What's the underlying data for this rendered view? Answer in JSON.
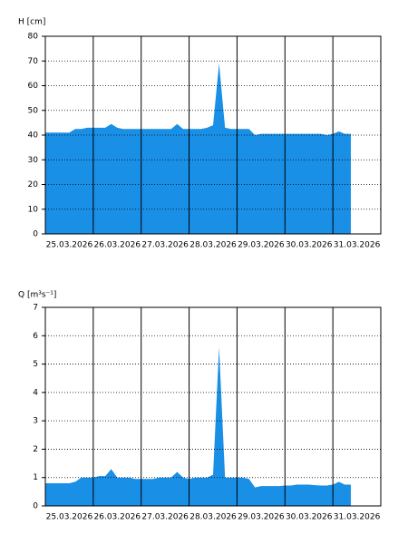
{
  "chart_data": [
    {
      "type": "area",
      "y_label": "H [cm]",
      "categories": [
        null,
        null,
        null,
        null,
        "25.03.2026",
        null,
        null,
        null,
        null,
        null,
        null,
        null,
        "26.03.2026",
        null,
        null,
        null,
        null,
        null,
        null,
        null,
        "27.03.2026",
        null,
        null,
        null,
        null,
        null,
        null,
        null,
        "28.03.2026",
        null,
        null,
        null,
        null,
        null,
        null,
        null,
        "29.03.2026",
        null,
        null,
        null,
        null,
        null,
        null,
        null,
        "30.03.2026",
        null,
        null,
        null,
        null,
        null,
        null,
        null,
        "31.03.2026",
        null,
        null,
        null,
        null
      ],
      "values": [
        41,
        41,
        41,
        41,
        41,
        42.5,
        42.5,
        43,
        43,
        43,
        43,
        44.5,
        43,
        42.5,
        42.5,
        42.5,
        42.5,
        42.5,
        42.5,
        42.5,
        42.5,
        42.5,
        44.5,
        42.5,
        42.5,
        42.5,
        42.5,
        43,
        44,
        69,
        43,
        42.5,
        42.5,
        42.5,
        42.5,
        40,
        40.5,
        40.5,
        40.5,
        40.5,
        40.5,
        40.5,
        40.5,
        40.5,
        40.5,
        40.5,
        40.5,
        40,
        40.5,
        41.5,
        40.5,
        40.5,
        null,
        null,
        null,
        null,
        null
      ],
      "color": "#1a8fe6",
      "ylim": [
        0,
        80
      ],
      "yticks": [
        0,
        10,
        20,
        30,
        40,
        50,
        60,
        70,
        80
      ],
      "grid": true
    },
    {
      "type": "area",
      "y_label": "Q [m³s⁻¹]",
      "categories": [
        null,
        null,
        null,
        null,
        "25.03.2026",
        null,
        null,
        null,
        null,
        null,
        null,
        null,
        "26.03.2026",
        null,
        null,
        null,
        null,
        null,
        null,
        null,
        "27.03.2026",
        null,
        null,
        null,
        null,
        null,
        null,
        null,
        "28.03.2026",
        null,
        null,
        null,
        null,
        null,
        null,
        null,
        "29.03.2026",
        null,
        null,
        null,
        null,
        null,
        null,
        null,
        "30.03.2026",
        null,
        null,
        null,
        null,
        null,
        null,
        null,
        "31.03.2026",
        null,
        null,
        null,
        null
      ],
      "values": [
        0.8,
        0.8,
        0.8,
        0.8,
        0.8,
        0.85,
        1.0,
        1.0,
        1.0,
        1.05,
        1.05,
        1.3,
        1.0,
        1.0,
        1.0,
        0.95,
        0.95,
        0.95,
        0.95,
        1.0,
        1.0,
        1.0,
        1.2,
        1.0,
        0.95,
        1.0,
        1.0,
        1.0,
        1.1,
        5.6,
        1.0,
        1.0,
        1.0,
        1.0,
        0.95,
        0.65,
        0.7,
        0.7,
        0.7,
        0.7,
        0.72,
        0.72,
        0.75,
        0.75,
        0.75,
        0.73,
        0.72,
        0.72,
        0.75,
        0.85,
        0.75,
        0.75,
        null,
        null,
        null,
        null,
        null
      ],
      "color": "#1a8fe6",
      "ylim": [
        0,
        7
      ],
      "yticks": [
        0,
        1,
        2,
        3,
        4,
        5,
        6,
        7
      ],
      "grid": true
    }
  ]
}
